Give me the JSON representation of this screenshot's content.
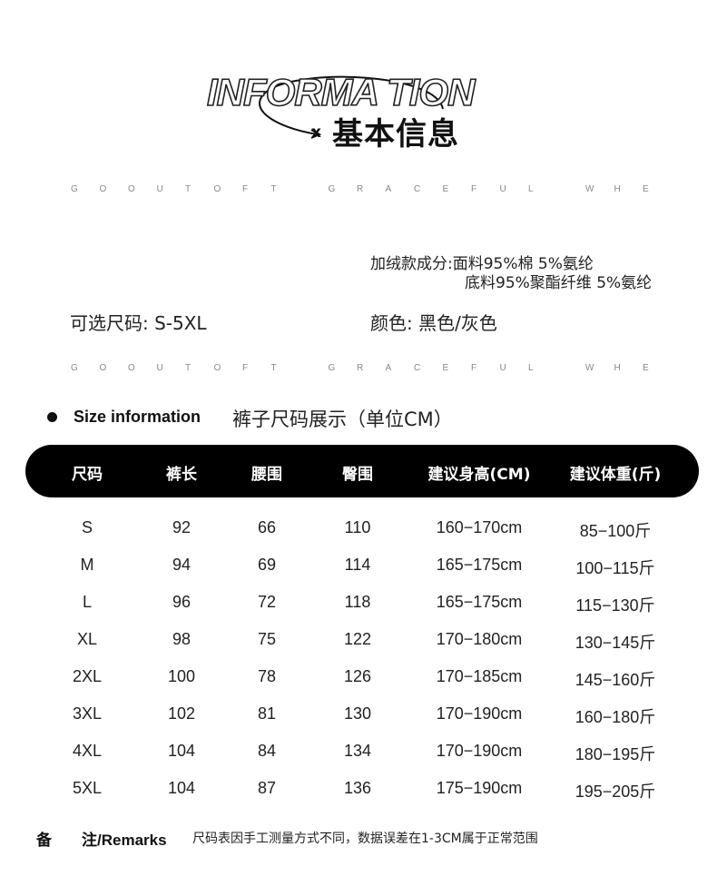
{
  "header": {
    "logo_text": "INFORMA TION",
    "x_mark": "x",
    "title_cn": "基本信息"
  },
  "deco_line": [
    "G",
    "O",
    "O",
    "U",
    "T",
    "O",
    "F",
    "T",
    "",
    "G",
    "R",
    "A",
    "C",
    "E",
    "F",
    "U",
    "L",
    "",
    "W",
    "H",
    "E"
  ],
  "fabric": {
    "line1": "加绒款成分:面料95%棉 5%氨纶",
    "line2": "底料95%聚酯纤维 5%氨纶"
  },
  "sizes_label": "可选尺码: S-5XL",
  "colors_label": "颜色: 黑色/灰色",
  "section": {
    "title_en": "Size information",
    "title_cn": "裤子尺码展示（单位CM）"
  },
  "table": {
    "headers": [
      "尺码",
      "裤长",
      "腰围",
      "臀围",
      "建议身高(CM)",
      "建议体重(斤)"
    ],
    "rows": [
      [
        "S",
        "92",
        "66",
        "110",
        "160−170cm",
        "85−100斤"
      ],
      [
        "M",
        "94",
        "69",
        "114",
        "165−175cm",
        "100−115斤"
      ],
      [
        "L",
        "96",
        "72",
        "118",
        "165−175cm",
        "115−130斤"
      ],
      [
        "XL",
        "98",
        "75",
        "122",
        "170−180cm",
        "130−145斤"
      ],
      [
        "2XL",
        "100",
        "78",
        "126",
        "170−185cm",
        "145−160斤"
      ],
      [
        "3XL",
        "102",
        "81",
        "130",
        "170−190cm",
        "160−180斤"
      ],
      [
        "4XL",
        "104",
        "84",
        "134",
        "170−190cm",
        "180−195斤"
      ],
      [
        "5XL",
        "104",
        "87",
        "136",
        "175−190cm",
        "195−205斤"
      ]
    ]
  },
  "remarks": {
    "label_a": "备",
    "label_b": "注/Remarks",
    "text": "尺码表因手工测量方式不同，数据误差在1-3CM属于正常范围"
  }
}
